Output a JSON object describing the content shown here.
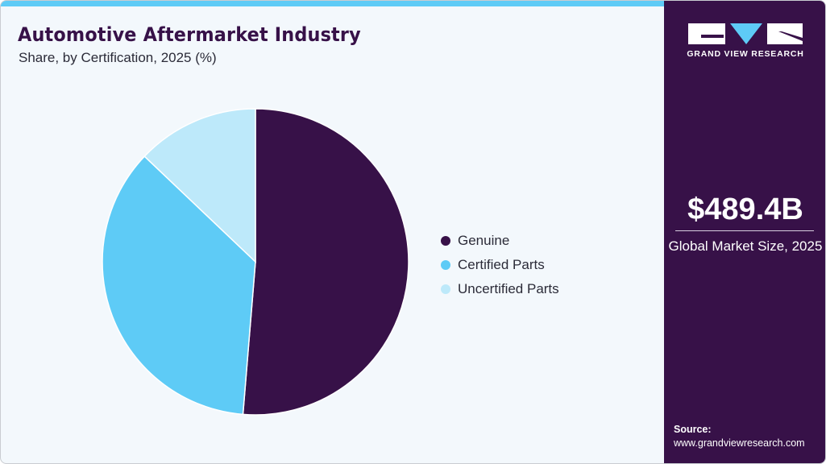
{
  "header": {
    "title": "Automotive Aftermarket Industry",
    "subtitle": "Share, by Certification, 2025 (%)"
  },
  "colors": {
    "accent_bar": "#5ecbf6",
    "sidebar_bg": "#371148",
    "background": "#f3f8fc",
    "genuine": "#371148",
    "certified": "#5ecbf6",
    "uncertified": "#bde9fa"
  },
  "legend": {
    "items": [
      {
        "label": "Genuine",
        "color": "#371148"
      },
      {
        "label": "Certified Parts",
        "color": "#5ecbf6"
      },
      {
        "label": "Uncertified Parts",
        "color": "#bde9fa"
      }
    ]
  },
  "sidebar": {
    "logo_text": "GRAND VIEW RESEARCH",
    "market_value": "$489.4B",
    "market_label": "Global Market Size, 2025",
    "source_heading": "Source:",
    "source_url": "www.grandviewresearch.com"
  },
  "chart_data": {
    "type": "pie",
    "title": "Automotive Aftermarket Industry",
    "subtitle": "Share, by Certification, 2025 (%)",
    "categories": [
      "Genuine",
      "Certified Parts",
      "Uncertified Parts"
    ],
    "values": [
      51.3,
      35.8,
      12.9
    ],
    "colors": [
      "#371148",
      "#5ecbf6",
      "#bde9fa"
    ],
    "start_angle": "12 o'clock, clockwise",
    "legend_position": "right",
    "data_labels": false
  }
}
